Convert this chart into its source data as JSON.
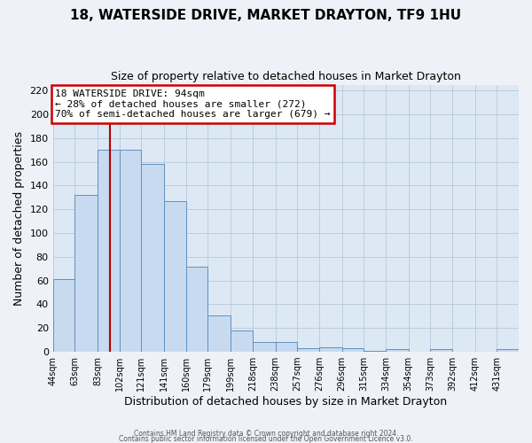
{
  "title": "18, WATERSIDE DRIVE, MARKET DRAYTON, TF9 1HU",
  "subtitle": "Size of property relative to detached houses in Market Drayton",
  "xlabel": "Distribution of detached houses by size in Market Drayton",
  "ylabel": "Number of detached properties",
  "bin_labels": [
    "44sqm",
    "63sqm",
    "83sqm",
    "102sqm",
    "121sqm",
    "141sqm",
    "160sqm",
    "179sqm",
    "199sqm",
    "218sqm",
    "238sqm",
    "257sqm",
    "276sqm",
    "296sqm",
    "315sqm",
    "334sqm",
    "354sqm",
    "373sqm",
    "392sqm",
    "412sqm",
    "431sqm"
  ],
  "bin_edges": [
    44,
    63,
    83,
    102,
    121,
    141,
    160,
    179,
    199,
    218,
    238,
    257,
    276,
    296,
    315,
    334,
    354,
    373,
    392,
    412,
    431
  ],
  "bar_heights": [
    61,
    132,
    170,
    170,
    158,
    127,
    72,
    31,
    18,
    8,
    8,
    3,
    4,
    3,
    1,
    2,
    0,
    2,
    0,
    0,
    2
  ],
  "bar_color": "#c8daf0",
  "bar_edge_color": "#6090c0",
  "ylim": [
    0,
    225
  ],
  "yticks": [
    0,
    20,
    40,
    60,
    80,
    100,
    120,
    140,
    160,
    180,
    200,
    220
  ],
  "vline_x": 94,
  "vline_color": "#bb0000",
  "annotation_text_line1": "18 WATERSIDE DRIVE: 94sqm",
  "annotation_text_line2": "← 28% of detached houses are smaller (272)",
  "annotation_text_line3": "70% of semi-detached houses are larger (679) →",
  "annotation_box_color": "#cc0000",
  "plot_bg_color": "#dce8f4",
  "fig_bg_color": "#eef2f8",
  "footer_line1": "Contains HM Land Registry data © Crown copyright and database right 2024.",
  "footer_line2": "Contains public sector information licensed under the Open Government Licence v3.0."
}
